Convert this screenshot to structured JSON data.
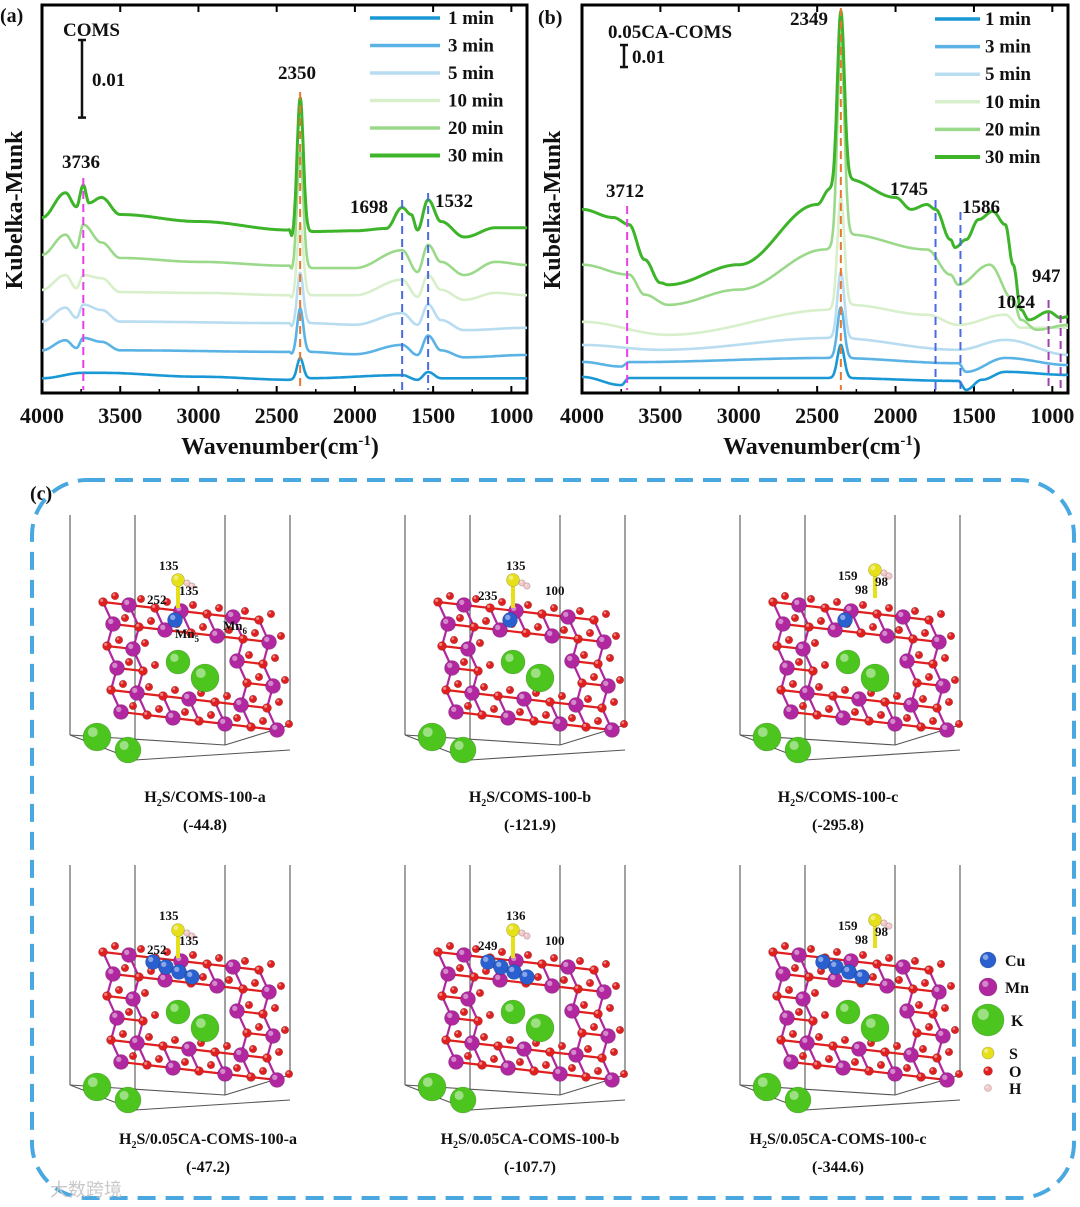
{
  "panels": {
    "a": "(a)",
    "b": "(b)",
    "c": "(c)"
  },
  "colors": {
    "1 min": "#1a98d5",
    "3 min": "#5ab3e4",
    "5 min": "#b8dcf0",
    "10 min": "#d8efcb",
    "20 min": "#9bd98a",
    "30 min": "#3db42a",
    "dash_box": "#4aa8e0"
  },
  "chart_data": [
    {
      "type": "line",
      "panel": "a",
      "title": "COMS",
      "xlabel": {
        "main": "Wavenumber(cm",
        "sup": "-1",
        "end": ")"
      },
      "ylabel": "Kubelka-Munk",
      "xlim": [
        4000,
        900
      ],
      "ylim": [
        0,
        0.05
      ],
      "xticks": [
        "4000",
        "3500",
        "3000",
        "2500",
        "2000",
        "1500",
        "1000"
      ],
      "scale_bar": {
        "value": 0.01,
        "label": "0.01"
      },
      "legend_position": "top-right",
      "annotations": [
        {
          "label": "3736",
          "x": 3736,
          "color": "#e83ee8"
        },
        {
          "label": "2350",
          "x": 2350,
          "color": "#e8772e"
        },
        {
          "label": "1698",
          "x": 1698,
          "color": "#4a6ae0"
        },
        {
          "label": "1532",
          "x": 1532,
          "color": "#4a6ae0"
        }
      ],
      "series": [
        {
          "name": "1 min",
          "anchors": [
            [
              4000,
              0.0019
            ],
            [
              3736,
              0.0026
            ],
            [
              3620,
              0.0026
            ],
            [
              3000,
              0.0021
            ],
            [
              2400,
              0.0017
            ],
            [
              2300,
              0.0019
            ],
            [
              1698,
              0.0023
            ],
            [
              1600,
              0.0017
            ],
            [
              1532,
              0.0027
            ],
            [
              1450,
              0.0019
            ],
            [
              900,
              0.0019
            ]
          ],
          "peaks": [
            {
              "center": 2350,
              "height": 0.0027,
              "sigma": 20
            }
          ]
        },
        {
          "name": "3 min",
          "anchors": [
            [
              4000,
              0.0055
            ],
            [
              3850,
              0.0068
            ],
            [
              3780,
              0.0058
            ],
            [
              3736,
              0.0071
            ],
            [
              3620,
              0.0066
            ],
            [
              3500,
              0.0055
            ],
            [
              2420,
              0.0053
            ],
            [
              2400,
              0.0049
            ],
            [
              2300,
              0.0053
            ],
            [
              2000,
              0.005
            ],
            [
              1698,
              0.0062
            ],
            [
              1600,
              0.0049
            ],
            [
              1532,
              0.0074
            ],
            [
              1450,
              0.0055
            ],
            [
              1300,
              0.0046
            ],
            [
              900,
              0.0049
            ]
          ],
          "peaks": [
            {
              "center": 2350,
              "height": 0.0058,
              "sigma": 20
            }
          ]
        },
        {
          "name": "5 min",
          "anchors": [
            [
              4000,
              0.0092
            ],
            [
              3850,
              0.011
            ],
            [
              3780,
              0.0097
            ],
            [
              3736,
              0.0114
            ],
            [
              3620,
              0.0107
            ],
            [
              3500,
              0.0092
            ],
            [
              2420,
              0.009
            ],
            [
              2400,
              0.0084
            ],
            [
              2300,
              0.009
            ],
            [
              2000,
              0.0088
            ],
            [
              1698,
              0.0103
            ],
            [
              1600,
              0.0088
            ],
            [
              1532,
              0.0114
            ],
            [
              1450,
              0.0094
            ],
            [
              1300,
              0.0081
            ],
            [
              900,
              0.0084
            ]
          ],
          "peaks": [
            {
              "center": 2350,
              "height": 0.0068,
              "sigma": 20
            }
          ]
        },
        {
          "name": "10 min",
          "anchors": [
            [
              4000,
              0.0133
            ],
            [
              3850,
              0.0152
            ],
            [
              3780,
              0.0135
            ],
            [
              3736,
              0.0152
            ],
            [
              3620,
              0.0148
            ],
            [
              3500,
              0.013
            ],
            [
              3000,
              0.0129
            ],
            [
              2420,
              0.0126
            ],
            [
              2400,
              0.012
            ],
            [
              2300,
              0.0126
            ],
            [
              2000,
              0.0126
            ],
            [
              1698,
              0.0146
            ],
            [
              1600,
              0.0124
            ],
            [
              1532,
              0.0152
            ],
            [
              1450,
              0.0133
            ],
            [
              1300,
              0.012
            ],
            [
              1100,
              0.0129
            ],
            [
              900,
              0.0126
            ]
          ],
          "peaks": [
            {
              "center": 2350,
              "height": 0.0095,
              "sigma": 20
            }
          ]
        },
        {
          "name": "20 min",
          "anchors": [
            [
              4000,
              0.0178
            ],
            [
              3850,
              0.0204
            ],
            [
              3780,
              0.0187
            ],
            [
              3736,
              0.0217
            ],
            [
              3620,
              0.0194
            ],
            [
              3500,
              0.0174
            ],
            [
              3000,
              0.0169
            ],
            [
              2420,
              0.0164
            ],
            [
              2400,
              0.0156
            ],
            [
              2300,
              0.0161
            ],
            [
              2000,
              0.0161
            ],
            [
              1698,
              0.0184
            ],
            [
              1600,
              0.0156
            ],
            [
              1532,
              0.0191
            ],
            [
              1450,
              0.0169
            ],
            [
              1300,
              0.0152
            ],
            [
              1100,
              0.0169
            ],
            [
              900,
              0.0165
            ]
          ],
          "peaks": [
            {
              "center": 2350,
              "height": 0.0152,
              "sigma": 20
            }
          ]
        },
        {
          "name": "30 min",
          "anchors": [
            [
              4000,
              0.0226
            ],
            [
              3850,
              0.0258
            ],
            [
              3780,
              0.024
            ],
            [
              3736,
              0.0268
            ],
            [
              3700,
              0.0245
            ],
            [
              3620,
              0.0252
            ],
            [
              3500,
              0.023
            ],
            [
              3000,
              0.0221
            ],
            [
              2420,
              0.021
            ],
            [
              2400,
              0.0197
            ],
            [
              2300,
              0.0208
            ],
            [
              2000,
              0.0209
            ],
            [
              1800,
              0.0212
            ],
            [
              1698,
              0.0239
            ],
            [
              1640,
              0.023
            ],
            [
              1600,
              0.021
            ],
            [
              1532,
              0.0249
            ],
            [
              1450,
              0.0221
            ],
            [
              1300,
              0.0201
            ],
            [
              1100,
              0.0213
            ],
            [
              900,
              0.0213
            ]
          ],
          "peaks": [
            {
              "center": 2350,
              "height": 0.0178,
              "sigma": 20
            }
          ]
        }
      ]
    },
    {
      "type": "line",
      "panel": "b",
      "title": "0.05CA-COMS",
      "xlabel": {
        "main": "Wavenumber(cm",
        "sup": "-1",
        "end": ")"
      },
      "ylabel": "Kubelka-Munk",
      "xlim": [
        4000,
        900
      ],
      "ylim": [
        0,
        0.176
      ],
      "xticks": [
        "4000",
        "3500",
        "3000",
        "2500",
        "2000",
        "1500",
        "1000"
      ],
      "scale_bar": {
        "value": 0.01,
        "label": "0.01"
      },
      "legend_position": "top-right",
      "annotations": [
        {
          "label": "3712",
          "x": 3712,
          "color": "#e83ee8"
        },
        {
          "label": "2349",
          "x": 2349,
          "color": "#e8772e"
        },
        {
          "label": "1745",
          "x": 1745,
          "color": "#4a6ae0"
        },
        {
          "label": "1586",
          "x": 1586,
          "color": "#4a6ae0"
        },
        {
          "label": "1024",
          "x": 1024,
          "color": "#a040b0"
        },
        {
          "label": "947",
          "x": 947,
          "color": "#a040b0"
        }
      ],
      "series": [
        {
          "name": "1 min",
          "anchors": [
            [
              4000,
              0.0073
            ],
            [
              3750,
              0.0036
            ],
            [
              3700,
              0.0068
            ],
            [
              2400,
              0.0068
            ],
            [
              1600,
              0.0055
            ],
            [
              1550,
              0.0014
            ],
            [
              1450,
              0.006
            ],
            [
              1300,
              0.0096
            ],
            [
              900,
              0.0082
            ]
          ],
          "peaks": [
            {
              "center": 2349,
              "height": 0.015,
              "sigma": 22
            }
          ]
        },
        {
          "name": "3 min",
          "anchors": [
            [
              4000,
              0.0141
            ],
            [
              3750,
              0.012
            ],
            [
              3700,
              0.014
            ],
            [
              2400,
              0.0159
            ],
            [
              1600,
              0.0135
            ],
            [
              1550,
              0.0096
            ],
            [
              1300,
              0.0159
            ],
            [
              900,
              0.0127
            ]
          ],
          "peaks": [
            {
              "center": 2349,
              "height": 0.023,
              "sigma": 22
            }
          ]
        },
        {
          "name": "5 min",
          "anchors": [
            [
              4000,
              0.0218
            ],
            [
              3500,
              0.0196
            ],
            [
              2400,
              0.025
            ],
            [
              1600,
              0.0196
            ],
            [
              1300,
              0.0241
            ],
            [
              900,
              0.0173
            ]
          ],
          "peaks": [
            {
              "center": 2349,
              "height": 0.03,
              "sigma": 22
            }
          ]
        },
        {
          "name": "10 min",
          "anchors": [
            [
              4000,
              0.0323
            ],
            [
              3450,
              0.0264
            ],
            [
              2400,
              0.0378
            ],
            [
              2300,
              0.04
            ],
            [
              1800,
              0.0355
            ],
            [
              1600,
              0.0309
            ],
            [
              1300,
              0.0355
            ],
            [
              1200,
              0.0296
            ],
            [
              900,
              0.0296
            ]
          ],
          "peaks": [
            {
              "center": 2349,
              "height": 0.05,
              "sigma": 22
            }
          ]
        },
        {
          "name": "20 min",
          "anchors": [
            [
              4000,
              0.0582
            ],
            [
              3700,
              0.0537
            ],
            [
              3600,
              0.0446
            ],
            [
              3450,
              0.04
            ],
            [
              3000,
              0.0469
            ],
            [
              2450,
              0.0651
            ],
            [
              2300,
              0.0719
            ],
            [
              1800,
              0.0651
            ],
            [
              1650,
              0.0537
            ],
            [
              1600,
              0.0491
            ],
            [
              1400,
              0.0582
            ],
            [
              1250,
              0.0423
            ],
            [
              1200,
              0.0332
            ],
            [
              1100,
              0.0287
            ],
            [
              900,
              0.0309
            ]
          ],
          "peaks": [
            {
              "center": 2349,
              "height": 0.09,
              "sigma": 22
            }
          ]
        },
        {
          "name": "30 min",
          "anchors": [
            [
              4000,
              0.0833
            ],
            [
              3800,
              0.0796
            ],
            [
              3700,
              0.0764
            ],
            [
              3600,
              0.0605
            ],
            [
              3500,
              0.05
            ],
            [
              3450,
              0.0491
            ],
            [
              3000,
              0.0582
            ],
            [
              2500,
              0.0855
            ],
            [
              2420,
              0.0924
            ],
            [
              2300,
              0.0969
            ],
            [
              2000,
              0.0887
            ],
            [
              1900,
              0.0833
            ],
            [
              1800,
              0.0855
            ],
            [
              1745,
              0.0833
            ],
            [
              1650,
              0.0696
            ],
            [
              1620,
              0.066
            ],
            [
              1550,
              0.0696
            ],
            [
              1470,
              0.0787
            ],
            [
              1380,
              0.0824
            ],
            [
              1300,
              0.0764
            ],
            [
              1250,
              0.0582
            ],
            [
              1200,
              0.0378
            ],
            [
              1150,
              0.0332
            ],
            [
              1024,
              0.0369
            ],
            [
              947,
              0.0341
            ],
            [
              900,
              0.0346
            ]
          ],
          "peaks": [
            {
              "center": 2349,
              "height": 0.078,
              "sigma": 22
            }
          ]
        }
      ]
    }
  ],
  "structures": [
    {
      "id": "a1",
      "label": {
        "pre": "H",
        "sub": "2",
        "rest": "S/COMS-100-a"
      },
      "energy": "(-44.8)",
      "cu_count": 1,
      "notes": [
        "135",
        "135",
        "252"
      ],
      "mn_labels": [
        {
          "t": "Mn",
          "s": "5"
        },
        {
          "t": "Mn",
          "s": "6"
        }
      ]
    },
    {
      "id": "a2",
      "label": {
        "pre": "H",
        "sub": "2",
        "rest": "S/COMS-100-b"
      },
      "energy": "(-121.9)",
      "cu_count": 1,
      "notes": [
        "135",
        "235",
        "100"
      ],
      "mn_labels": []
    },
    {
      "id": "a3",
      "label": {
        "pre": "H",
        "sub": "2",
        "rest": "S/COMS-100-c"
      },
      "energy": "(-295.8)",
      "cu_count": 1,
      "notes": [
        "159",
        "98",
        "98"
      ],
      "mn_labels": []
    },
    {
      "id": "b1",
      "label": {
        "pre": "H",
        "sub": "2",
        "rest": "S/0.05CA-COMS-100-a"
      },
      "energy": "(-47.2)",
      "cu_count": 4,
      "notes": [
        "135",
        "135",
        "252"
      ],
      "mn_labels": []
    },
    {
      "id": "b2",
      "label": {
        "pre": "H",
        "sub": "2",
        "rest": "S/0.05CA-COMS-100-b"
      },
      "energy": "(-107.7)",
      "cu_count": 4,
      "notes": [
        "136",
        "249",
        "100"
      ],
      "mn_labels": []
    },
    {
      "id": "b3",
      "label": {
        "pre": "H",
        "sub": "2",
        "rest": "S/0.05CA-COMS-100-c"
      },
      "energy": "(-344.6)",
      "cu_count": 4,
      "notes": [
        "159",
        "98",
        "98"
      ],
      "mn_labels": []
    }
  ],
  "atom_legend": [
    {
      "label": "Cu",
      "color": "#2a5fd0"
    },
    {
      "label": "Mn",
      "color": "#b0279f"
    },
    {
      "label": "K",
      "color": "#4cc61e"
    },
    {
      "label": "S",
      "color": "#e6e01a"
    },
    {
      "label": "O",
      "color": "#e02020"
    },
    {
      "label": "H",
      "color": "#f4c8c8"
    }
  ],
  "watermark": "大数跨境"
}
